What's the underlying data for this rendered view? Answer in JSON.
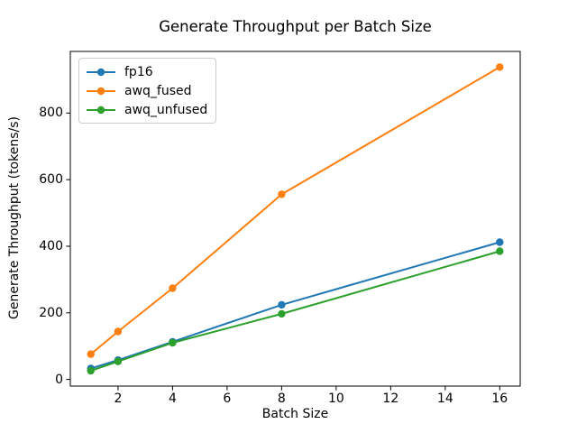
{
  "chart_data": {
    "type": "line",
    "title": "Generate Throughput per Batch Size",
    "xlabel": "Batch Size",
    "ylabel": "Generate Throughput (tokens/s)",
    "x": [
      1,
      2,
      4,
      8,
      16
    ],
    "series": [
      {
        "name": "fp16",
        "color": "#1f77b4",
        "values": [
          33,
          58,
          113,
          224,
          412
        ]
      },
      {
        "name": "awq_fused",
        "color": "#ff7f0e",
        "values": [
          76,
          144,
          274,
          556,
          938
        ]
      },
      {
        "name": "awq_unfused",
        "color": "#2ca02c",
        "values": [
          26,
          54,
          110,
          197,
          385
        ]
      }
    ],
    "xticks": [
      2,
      4,
      6,
      8,
      10,
      12,
      14,
      16
    ],
    "yticks": [
      0,
      200,
      400,
      600,
      800
    ],
    "xlim": [
      0.25,
      16.75
    ],
    "ylim": [
      -20,
      985
    ],
    "grid": false,
    "legend_position": "upper left",
    "marker": "o",
    "axes_color": "#000000",
    "background_color": "#ffffff"
  }
}
